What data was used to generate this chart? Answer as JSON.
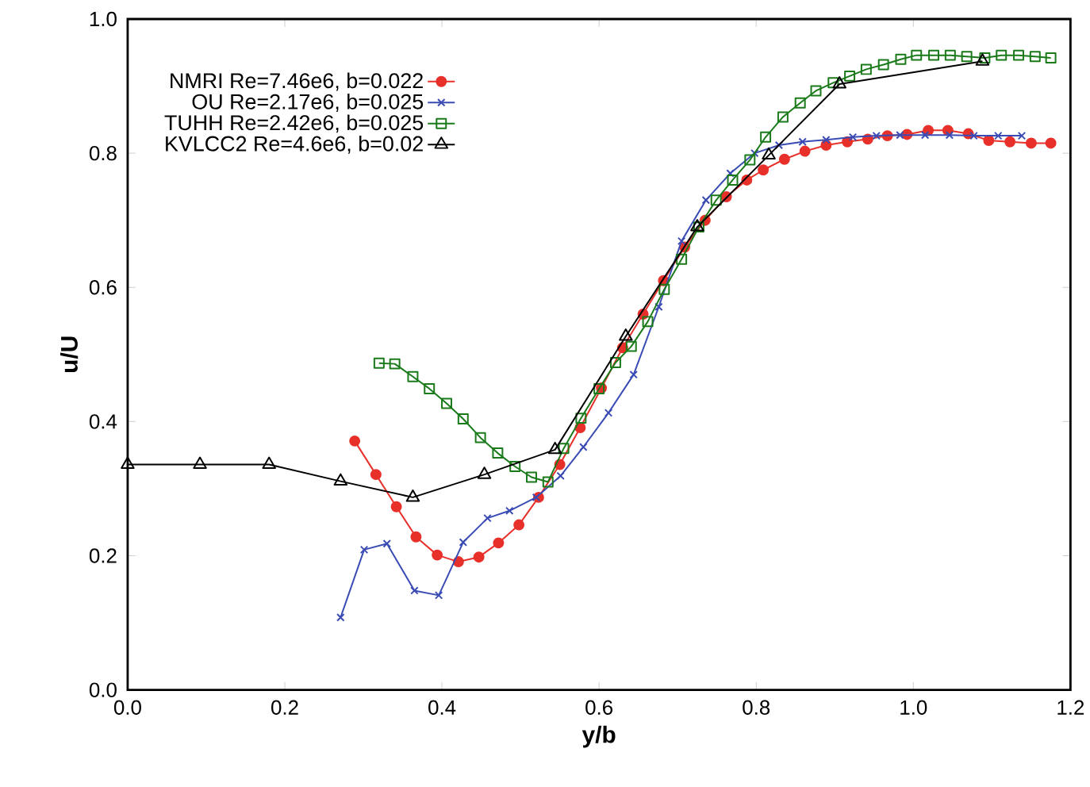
{
  "chart_data": {
    "type": "line",
    "xlabel": "y/b",
    "ylabel": "u/U",
    "xlim": [
      0,
      1.2
    ],
    "ylim": [
      0,
      1.0
    ],
    "xticks": [
      {
        "value": 0,
        "label": "0.0"
      },
      {
        "value": 0.2,
        "label": "0.2"
      },
      {
        "value": 0.4,
        "label": "0.4"
      },
      {
        "value": 0.6,
        "label": "0.6"
      },
      {
        "value": 0.8,
        "label": "0.8"
      },
      {
        "value": 1.0,
        "label": "1.0"
      },
      {
        "value": 1.2,
        "label": "1.2"
      }
    ],
    "yticks": [
      {
        "value": 0,
        "label": "0.0"
      },
      {
        "value": 0.2,
        "label": "0.2"
      },
      {
        "value": 0.4,
        "label": "0.4"
      },
      {
        "value": 0.6,
        "label": "0.6"
      },
      {
        "value": 0.8,
        "label": "0.8"
      },
      {
        "value": 1.0,
        "label": "1.0"
      }
    ],
    "grid": false,
    "legend": "top left",
    "series": [
      {
        "name": "NMRI Re=7.46e6, b=0.022",
        "color": "#e8302a",
        "marker": "circle",
        "x": [
          0.289,
          0.316,
          0.342,
          0.367,
          0.394,
          0.421,
          0.447,
          0.472,
          0.498,
          0.523,
          0.55,
          0.576,
          0.603,
          0.63,
          0.656,
          0.682,
          0.709,
          0.735,
          0.762,
          0.788,
          0.809,
          0.836,
          0.862,
          0.889,
          0.916,
          0.942,
          0.967,
          0.992,
          1.019,
          1.044,
          1.07,
          1.096,
          1.123,
          1.15,
          1.175
        ],
        "values": [
          0.371,
          0.321,
          0.273,
          0.228,
          0.201,
          0.191,
          0.198,
          0.219,
          0.246,
          0.287,
          0.336,
          0.391,
          0.45,
          0.51,
          0.56,
          0.61,
          0.66,
          0.7,
          0.735,
          0.76,
          0.775,
          0.791,
          0.803,
          0.812,
          0.817,
          0.821,
          0.826,
          0.828,
          0.834,
          0.834,
          0.829,
          0.819,
          0.817,
          0.815,
          0.815
        ]
      },
      {
        "name": "OU Re=2.17e6, b=0.025",
        "color": "#3a4cb4",
        "marker": "cross",
        "x": [
          0.271,
          0.301,
          0.33,
          0.365,
          0.396,
          0.427,
          0.458,
          0.486,
          0.52,
          0.551,
          0.58,
          0.612,
          0.644,
          0.676,
          0.705,
          0.736,
          0.767,
          0.798,
          0.829,
          0.859,
          0.889,
          0.923,
          0.953,
          0.983,
          1.015,
          1.046,
          1.077,
          1.108,
          1.138
        ],
        "values": [
          0.108,
          0.209,
          0.218,
          0.148,
          0.141,
          0.22,
          0.256,
          0.267,
          0.287,
          0.319,
          0.362,
          0.413,
          0.47,
          0.571,
          0.669,
          0.73,
          0.77,
          0.8,
          0.812,
          0.817,
          0.82,
          0.824,
          0.826,
          0.827,
          0.827,
          0.827,
          0.826,
          0.826,
          0.826
        ]
      },
      {
        "name": "TUHH Re=2.42e6, b=0.025",
        "color": "#1a7a1a",
        "marker": "square",
        "x": [
          0.32,
          0.34,
          0.363,
          0.384,
          0.406,
          0.427,
          0.449,
          0.471,
          0.493,
          0.514,
          0.535,
          0.555,
          0.577,
          0.6,
          0.621,
          0.641,
          0.662,
          0.683,
          0.705,
          0.727,
          0.749,
          0.77,
          0.792,
          0.812,
          0.834,
          0.856,
          0.876,
          0.898,
          0.919,
          0.94,
          0.962,
          0.984,
          1.004,
          1.026,
          1.047,
          1.068,
          1.091,
          1.112,
          1.134,
          1.155,
          1.175
        ],
        "values": [
          0.487,
          0.486,
          0.467,
          0.449,
          0.427,
          0.404,
          0.376,
          0.353,
          0.333,
          0.317,
          0.31,
          0.36,
          0.405,
          0.449,
          0.488,
          0.512,
          0.549,
          0.597,
          0.642,
          0.69,
          0.73,
          0.76,
          0.79,
          0.824,
          0.854,
          0.875,
          0.893,
          0.905,
          0.915,
          0.925,
          0.932,
          0.94,
          0.946,
          0.946,
          0.946,
          0.944,
          0.942,
          0.946,
          0.946,
          0.944,
          0.942
        ]
      },
      {
        "name": "KVLCC2 Re=4.6e6,  b=0.02",
        "color": "#000000",
        "marker": "triangle",
        "x": [
          0.0,
          0.092,
          0.18,
          0.271,
          0.363,
          0.454,
          0.544,
          0.634,
          0.725,
          0.816,
          0.906,
          1.088
        ],
        "values": [
          0.336,
          0.336,
          0.336,
          0.311,
          0.287,
          0.321,
          0.358,
          0.527,
          0.69,
          0.797,
          0.903,
          0.937
        ]
      }
    ]
  }
}
